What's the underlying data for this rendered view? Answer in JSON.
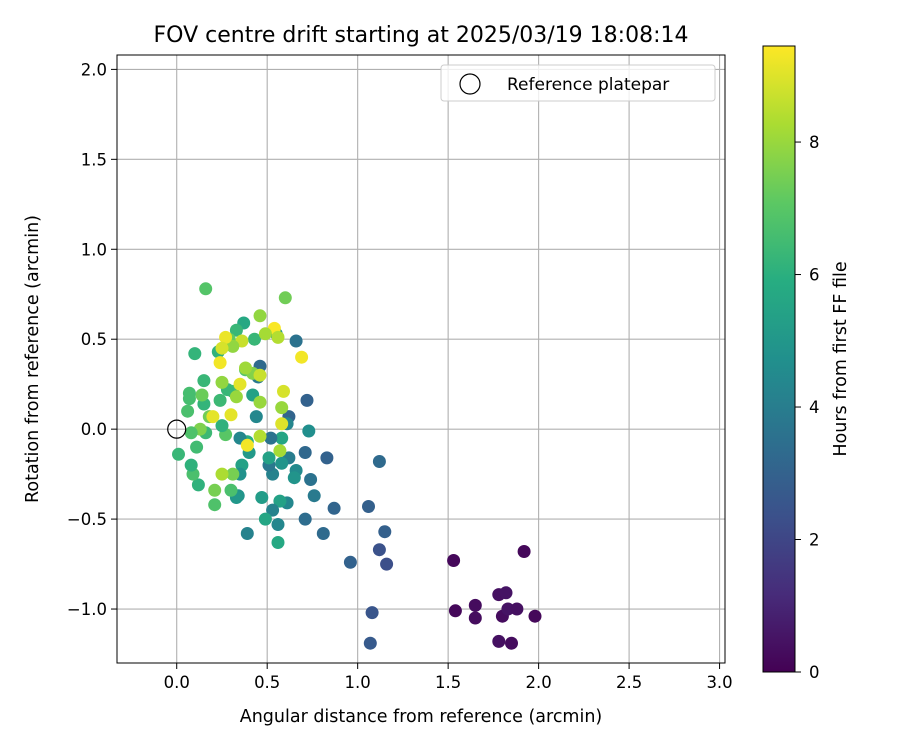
{
  "chart_data": {
    "type": "scatter",
    "title": "FOV centre drift starting at 2025/03/19 18:08:14",
    "xlabel": "Angular distance from reference (arcmin)",
    "ylabel": "Rotation from reference (arcmin)",
    "xlim": [
      -0.33,
      3.03
    ],
    "ylim": [
      -1.3,
      2.08
    ],
    "xticks": [
      0.0,
      0.5,
      1.0,
      1.5,
      2.0,
      2.5,
      3.0
    ],
    "xtick_labels": [
      "0.0",
      "0.5",
      "1.0",
      "1.5",
      "2.0",
      "2.5",
      "3.0"
    ],
    "yticks": [
      -1.0,
      -0.5,
      0.0,
      0.5,
      1.0,
      1.5,
      2.0
    ],
    "ytick_labels": [
      "−1.0",
      "−0.5",
      "0.0",
      "0.5",
      "1.0",
      "1.5",
      "2.0"
    ],
    "grid": true,
    "legend": {
      "position": "top-right",
      "entries": [
        "Reference platepar"
      ]
    },
    "reference_point": {
      "x": 0.0,
      "y": 0.0
    },
    "colorbar": {
      "label": "Hours from first FF file",
      "min": 0,
      "max": 9.45,
      "ticks": [
        0,
        2,
        4,
        6,
        8
      ],
      "tick_labels": [
        "0",
        "2",
        "4",
        "6",
        "8"
      ],
      "colormap": "viridis"
    },
    "points": [
      [
        1.53,
        -0.73,
        0.2
      ],
      [
        1.54,
        -1.01,
        0.2
      ],
      [
        1.65,
        -0.98,
        0.3
      ],
      [
        1.65,
        -1.05,
        0.3
      ],
      [
        1.78,
        -0.92,
        0.4
      ],
      [
        1.78,
        -1.18,
        0.4
      ],
      [
        1.8,
        -1.04,
        0.3
      ],
      [
        1.82,
        -0.91,
        0.5
      ],
      [
        1.83,
        -1.0,
        0.5
      ],
      [
        1.85,
        -1.19,
        0.3
      ],
      [
        1.88,
        -1.0,
        0.4
      ],
      [
        1.92,
        -0.68,
        0.2
      ],
      [
        1.98,
        -1.04,
        0.2
      ],
      [
        1.06,
        -0.43,
        2.9
      ],
      [
        1.07,
        -1.19,
        2.7
      ],
      [
        1.08,
        -1.02,
        2.5
      ],
      [
        1.12,
        -0.18,
        3.3
      ],
      [
        1.12,
        -0.67,
        2.4
      ],
      [
        1.15,
        -0.57,
        2.9
      ],
      [
        1.16,
        -0.75,
        2.3
      ],
      [
        0.96,
        -0.74,
        3.0
      ],
      [
        0.87,
        -0.44,
        3.1
      ],
      [
        0.83,
        -0.16,
        3.0
      ],
      [
        0.81,
        -0.58,
        3.3
      ],
      [
        0.72,
        0.16,
        3.0
      ],
      [
        0.71,
        -0.13,
        3.2
      ],
      [
        0.71,
        -0.5,
        3.4
      ],
      [
        0.74,
        -0.28,
        3.6
      ],
      [
        0.76,
        -0.37,
        3.9
      ],
      [
        0.73,
        -0.01,
        4.7
      ],
      [
        0.66,
        0.49,
        3.6
      ],
      [
        0.66,
        -0.23,
        4.5
      ],
      [
        0.65,
        -0.27,
        4.9
      ],
      [
        0.62,
        0.07,
        3.1
      ],
      [
        0.62,
        -0.16,
        4.0
      ],
      [
        0.61,
        0.03,
        4.3
      ],
      [
        0.61,
        -0.41,
        4.4
      ],
      [
        0.58,
        -0.19,
        4.9
      ],
      [
        0.58,
        -0.05,
        5.6
      ],
      [
        0.57,
        -0.4,
        5.4
      ],
      [
        0.56,
        -0.53,
        4.4
      ],
      [
        0.56,
        -0.63,
        5.7
      ],
      [
        0.55,
        0.53,
        5.0
      ],
      [
        0.53,
        -0.45,
        4.2
      ],
      [
        0.53,
        -0.25,
        4.2
      ],
      [
        0.52,
        -0.05,
        3.6
      ],
      [
        0.51,
        -0.2,
        3.8
      ],
      [
        0.51,
        -0.16,
        5.4
      ],
      [
        0.49,
        -0.5,
        5.6
      ],
      [
        0.47,
        -0.38,
        5.2
      ],
      [
        0.46,
        0.35,
        3.3
      ],
      [
        0.45,
        0.29,
        3.8
      ],
      [
        0.44,
        0.07,
        4.4
      ],
      [
        0.43,
        0.5,
        6.3
      ],
      [
        0.42,
        0.19,
        5.4
      ],
      [
        0.4,
        -0.13,
        5.1
      ],
      [
        0.39,
        -0.58,
        4.2
      ],
      [
        0.39,
        -0.07,
        5.9
      ],
      [
        0.38,
        0.33,
        6.9
      ],
      [
        0.37,
        0.59,
        5.7
      ],
      [
        0.36,
        -0.2,
        5.4
      ],
      [
        0.35,
        -0.05,
        4.4
      ],
      [
        0.35,
        -0.25,
        4.8
      ],
      [
        0.34,
        -0.37,
        4.9
      ],
      [
        0.33,
        -0.38,
        5.0
      ],
      [
        0.33,
        0.55,
        6.3
      ],
      [
        0.31,
        0.21,
        6.5
      ],
      [
        0.31,
        -0.25,
        7.5
      ],
      [
        0.3,
        -0.34,
        6.7
      ],
      [
        0.29,
        0.5,
        7.2
      ],
      [
        0.28,
        0.22,
        6.3
      ],
      [
        0.27,
        -0.03,
        7.0
      ],
      [
        0.25,
        0.26,
        7.9
      ],
      [
        0.25,
        0.02,
        6.1
      ],
      [
        0.24,
        0.16,
        6.4
      ],
      [
        0.23,
        0.43,
        6.1
      ],
      [
        0.21,
        -0.34,
        7.5
      ],
      [
        0.21,
        -0.42,
        6.8
      ],
      [
        0.18,
        0.07,
        7.4
      ],
      [
        0.16,
        -0.02,
        6.4
      ],
      [
        0.15,
        0.27,
        6.3
      ],
      [
        0.15,
        0.14,
        6.2
      ],
      [
        0.14,
        0.19,
        7.3
      ],
      [
        0.13,
        0.0,
        7.6
      ],
      [
        0.12,
        -0.31,
        6.1
      ],
      [
        0.11,
        -0.1,
        6.5
      ],
      [
        0.1,
        0.42,
        6.2
      ],
      [
        0.09,
        -0.25,
        6.7
      ],
      [
        0.08,
        -0.2,
        6.1
      ],
      [
        0.08,
        -0.02,
        6.8
      ],
      [
        0.07,
        0.2,
        6.6
      ],
      [
        0.07,
        0.17,
        6.6
      ],
      [
        0.06,
        0.1,
        6.7
      ],
      [
        0.01,
        -0.14,
        6.3
      ],
      [
        0.16,
        0.78,
        6.9
      ],
      [
        0.6,
        0.73,
        7.4
      ],
      [
        0.46,
        0.63,
        7.9
      ],
      [
        0.54,
        0.56,
        9.4
      ],
      [
        0.56,
        0.51,
        8.4
      ],
      [
        0.49,
        0.53,
        8.2
      ],
      [
        0.42,
        0.31,
        7.7
      ],
      [
        0.46,
        0.3,
        8.7
      ],
      [
        0.36,
        0.49,
        8.7
      ],
      [
        0.31,
        0.46,
        7.9
      ],
      [
        0.27,
        0.51,
        9.2
      ],
      [
        0.25,
        0.45,
        8.9
      ],
      [
        0.24,
        0.37,
        9.3
      ],
      [
        0.35,
        0.25,
        9.1
      ],
      [
        0.3,
        0.08,
        9.1
      ],
      [
        0.2,
        0.07,
        9.1
      ],
      [
        0.39,
        -0.09,
        9.3
      ],
      [
        0.46,
        0.15,
        8.0
      ],
      [
        0.46,
        -0.04,
        8.4
      ],
      [
        0.59,
        0.21,
        8.9
      ],
      [
        0.58,
        0.12,
        8.0
      ],
      [
        0.58,
        0.03,
        9.0
      ],
      [
        0.57,
        -0.12,
        8.2
      ],
      [
        0.69,
        0.4,
        9.3
      ],
      [
        0.25,
        -0.25,
        8.3
      ],
      [
        0.38,
        0.34,
        8.1
      ],
      [
        0.33,
        0.18,
        8.0
      ]
    ]
  }
}
